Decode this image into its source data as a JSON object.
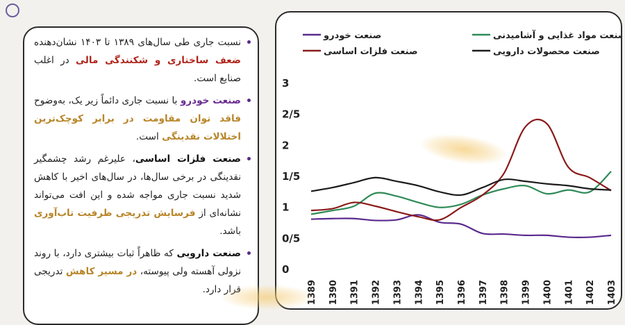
{
  "bullets": [
    {
      "parts": [
        {
          "text": "نسبت جاری طی سال‌های ۱۳۸۹ تا ۱۴۰۳ نشان‌دهنده ",
          "style": ""
        },
        {
          "text": "ضعف ساختاری و شکنندگی مالی",
          "style": "hl-red"
        },
        {
          "text": " در اغلب صنایع است.",
          "style": ""
        }
      ]
    },
    {
      "parts": [
        {
          "text": "صنعت ",
          "style": "hl-purple"
        },
        {
          "text": "خودرو",
          "style": "hl-purple"
        },
        {
          "text": " با نسبت جاری دائماً زیر یک، به‌وضوح ",
          "style": ""
        },
        {
          "text": "فاقد توان مقاومت در برابر کوچک‌ترین اختلالات نقدینگی",
          "style": "hl-gold"
        },
        {
          "text": " است.",
          "style": ""
        }
      ]
    },
    {
      "parts": [
        {
          "text": "صنعت فلزات اساسی",
          "style": "hl-black"
        },
        {
          "text": "، علیرغم رشد چشمگیر نقدینگی در برخی سال‌ها، در سال‌های اخیر با کاهش شدید نسبت جاری مواجه شده و این افت می‌تواند نشانه‌ای از ",
          "style": ""
        },
        {
          "text": "فرسایش تدریجی ظرفیت تاب‌آوری",
          "style": "hl-gold"
        },
        {
          "text": " باشد.",
          "style": ""
        }
      ]
    },
    {
      "parts": [
        {
          "text": "صنعت دارویی",
          "style": "hl-black"
        },
        {
          "text": " که ظاهراً ثبات بیشتری دارد، با روند نزولی آهسته ولی پیوسته، ",
          "style": ""
        },
        {
          "text": "در مسیر کاهش",
          "style": "hl-gold"
        },
        {
          "text": " تدریجی قرار دارد.",
          "style": ""
        }
      ]
    }
  ],
  "chart_data": {
    "type": "line",
    "x": [
      "1389",
      "1390",
      "1391",
      "1392",
      "1393",
      "1394",
      "1395",
      "1396",
      "1397",
      "1398",
      "1399",
      "1400",
      "1401",
      "1402",
      "1403"
    ],
    "y_ticks": [
      "0",
      "0/5",
      "1",
      "1/5",
      "2",
      "2/5",
      "3"
    ],
    "ylim": [
      0,
      3
    ],
    "grid": false,
    "legend_position": "top",
    "series": [
      {
        "name": "صنعت خودرو",
        "color": "#5a2a8e",
        "values": [
          0.81,
          0.82,
          0.82,
          0.79,
          0.8,
          0.88,
          0.76,
          0.73,
          0.58,
          0.57,
          0.55,
          0.55,
          0.52,
          0.52,
          0.55
        ]
      },
      {
        "name": "صنعت مواد غذایی و آشامیدنی",
        "color": "#2e8b57",
        "values": [
          0.89,
          0.95,
          1.02,
          1.23,
          1.18,
          1.08,
          1.0,
          1.05,
          1.2,
          1.3,
          1.35,
          1.22,
          1.28,
          1.25,
          1.58
        ]
      },
      {
        "name": "صنعت فلزات اساسی",
        "color": "#8b1a1a",
        "values": [
          0.95,
          0.98,
          1.08,
          1.02,
          0.93,
          0.85,
          0.8,
          1.0,
          1.2,
          1.55,
          2.3,
          2.35,
          1.65,
          1.48,
          1.27
        ]
      },
      {
        "name": "صنعت محصولات دارویی",
        "color": "#1c1c1c",
        "values": [
          1.26,
          1.32,
          1.4,
          1.48,
          1.42,
          1.35,
          1.25,
          1.2,
          1.32,
          1.45,
          1.42,
          1.38,
          1.35,
          1.3,
          1.28
        ]
      }
    ]
  },
  "legend_labels": {
    "auto": "صنعت خودرو",
    "food": "صنعت مواد غذایی و آشامیدنی",
    "metals": "صنعت فلزات اساسی",
    "pharma": "صنعت محصولات دارویی"
  }
}
